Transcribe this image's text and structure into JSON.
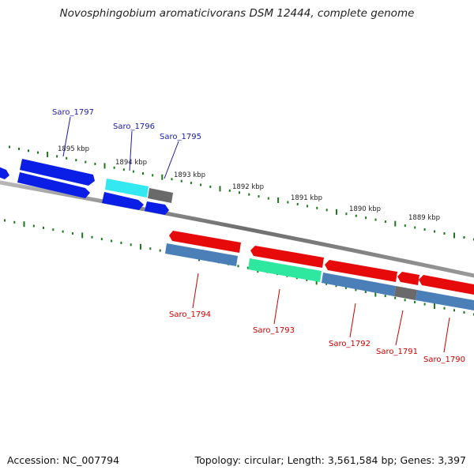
{
  "title": "Novosphingobium aromaticivorans DSM 12444, complete genome",
  "footer": {
    "accession": "Accession: NC_007794",
    "summary": "Topology: circular; Length: 3,561,584 bp; Genes: 3,397"
  },
  "colors": {
    "plus_cds": "#0a1ee6",
    "plus_highlight": "#33e8f0",
    "minus_cds": "#e60a0a",
    "minus_cds_lower": "#4a7fb8",
    "minus_highlight": "#2fe8a0",
    "pseudo": "#6a6a6a",
    "tick": "#1a7a1a",
    "plus_label": "#1a1aaa",
    "minus_label": "#cc0000"
  },
  "kbp_ticks": [
    "1895 kbp",
    "1894 kbp",
    "1893 kbp",
    "1892 kbp",
    "1891 kbp",
    "1890 kbp",
    "1889 kbp"
  ],
  "gene_labels": {
    "plus": [
      "Saro_1797",
      "Saro_1796",
      "Saro_1795"
    ],
    "minus": [
      "Saro_1794",
      "Saro_1793",
      "Saro_1792",
      "Saro_1791",
      "Saro_1790"
    ]
  }
}
